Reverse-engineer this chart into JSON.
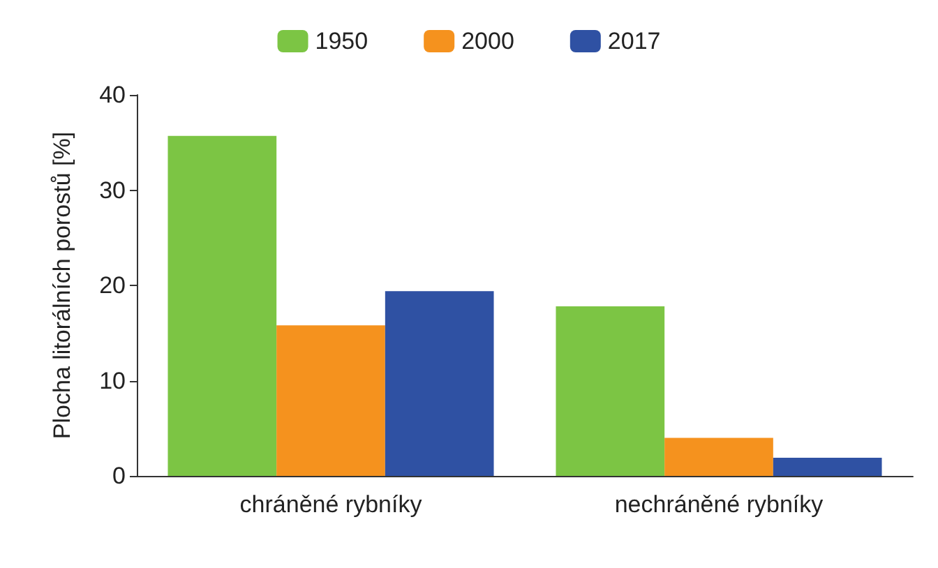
{
  "chart_data": {
    "type": "bar",
    "ylabel": "Plocha litorálních porostů [%]",
    "categories": [
      "chráněné rybníky",
      "nechráněné rybníky"
    ],
    "series": [
      {
        "name": "1950",
        "color": "#7cc544",
        "values": [
          35.7,
          17.8
        ]
      },
      {
        "name": "2000",
        "color": "#f5921e",
        "values": [
          15.8,
          4
        ]
      },
      {
        "name": "2017",
        "color": "#2f51a3",
        "values": [
          19.4,
          1.9
        ]
      }
    ],
    "ylim": [
      0,
      40
    ],
    "yticks": [
      0,
      10,
      20,
      30,
      40
    ],
    "grid": false,
    "legend": "top"
  }
}
